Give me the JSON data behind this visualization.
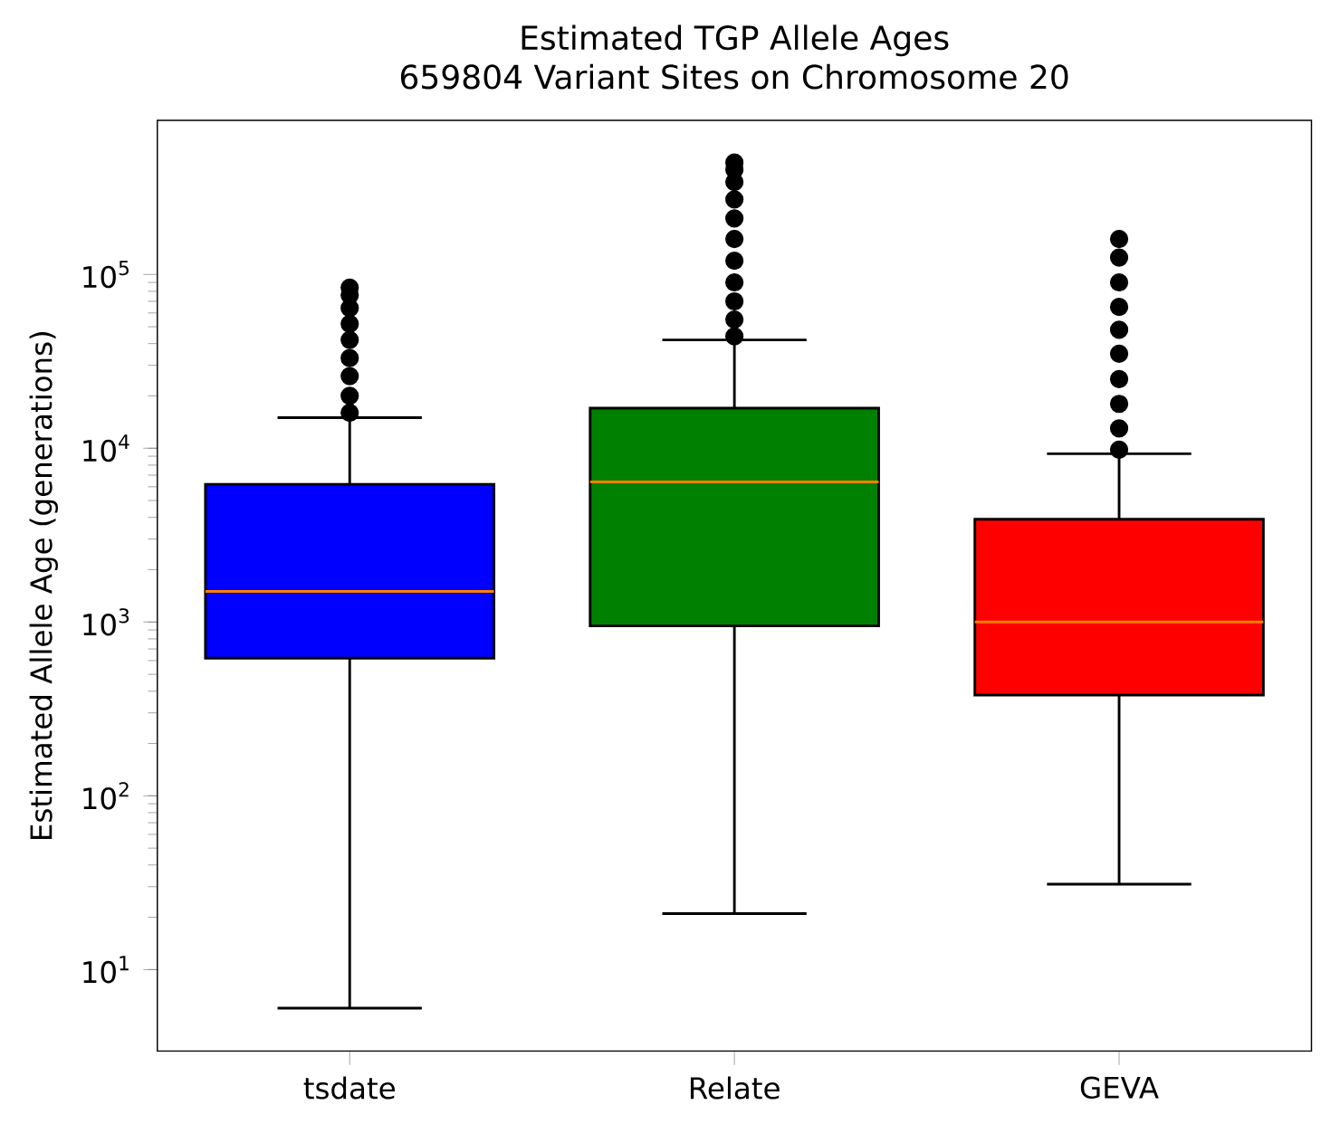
{
  "chart_data": {
    "type": "box",
    "title": "Estimated TGP Allele Ages",
    "subtitle": "659804 Variant Sites on Chromosome 20",
    "ylabel": "Estimated Allele Age (generations)",
    "log": "y",
    "ylim": [
      3.4,
      770000
    ],
    "yticks": [
      {
        "value": 10,
        "label": "10$^{1}$"
      },
      {
        "value": 100,
        "label": "10$^{2}$"
      },
      {
        "value": 1000,
        "label": "10$^{3}$"
      },
      {
        "value": 10000,
        "label": "10$^{4}$"
      },
      {
        "value": 100000,
        "label": "10$^{5}$"
      }
    ],
    "categories": [
      "tsdate",
      "Relate",
      "GEVA"
    ],
    "colors": [
      "#0000ff",
      "#008000",
      "#ff0000"
    ],
    "boxes": [
      {
        "low": 6,
        "q1": 620,
        "median": 1500,
        "q3": 6200,
        "high": 15000,
        "outliers": [
          16000,
          20000,
          26000,
          33000,
          42000,
          52000,
          64000,
          76000,
          84000
        ]
      },
      {
        "low": 21,
        "q1": 950,
        "median": 6400,
        "q3": 17000,
        "high": 42000,
        "outliers": [
          44000,
          55000,
          70000,
          90000,
          120000,
          160000,
          210000,
          270000,
          340000,
          400000,
          440000
        ]
      },
      {
        "low": 31,
        "q1": 380,
        "median": 1000,
        "q3": 3900,
        "high": 9300,
        "outliers": [
          9800,
          13000,
          18000,
          25000,
          35000,
          48000,
          65000,
          90000,
          125000,
          160000
        ]
      }
    ]
  }
}
